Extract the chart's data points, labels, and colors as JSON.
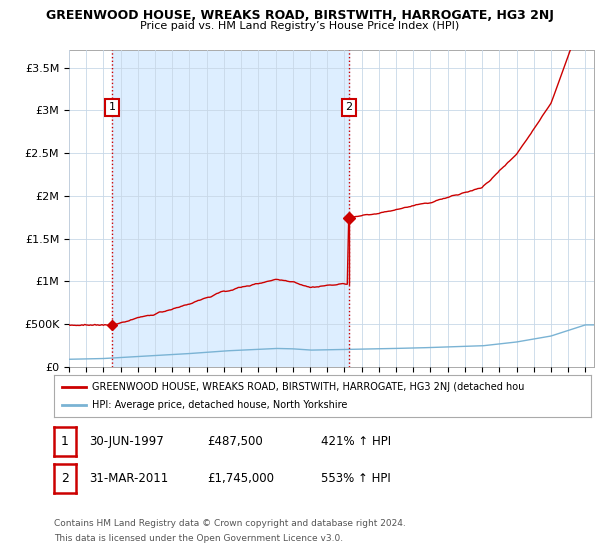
{
  "title": "GREENWOOD HOUSE, WREAKS ROAD, BIRSTWITH, HARROGATE, HG3 2NJ",
  "subtitle": "Price paid vs. HM Land Registry’s House Price Index (HPI)",
  "title_fontsize": 9,
  "subtitle_fontsize": 8,
  "xlim_left": 1995.0,
  "xlim_right": 2025.5,
  "ylim_bottom": 0,
  "ylim_top": 3700000,
  "yticks": [
    0,
    500000,
    1000000,
    1500000,
    2000000,
    2500000,
    3000000,
    3500000
  ],
  "ytick_labels": [
    "£0",
    "£500K",
    "£1M",
    "£1.5M",
    "£2M",
    "£2.5M",
    "£3M",
    "£3.5M"
  ],
  "xticks": [
    1995,
    1996,
    1997,
    1998,
    1999,
    2000,
    2001,
    2002,
    2003,
    2004,
    2005,
    2006,
    2007,
    2008,
    2009,
    2010,
    2011,
    2012,
    2013,
    2014,
    2015,
    2016,
    2017,
    2018,
    2019,
    2020,
    2021,
    2022,
    2023,
    2024,
    2025
  ],
  "point1_x": 1997.496,
  "point1_y": 487500,
  "point2_x": 2011.247,
  "point2_y": 1745000,
  "red_color": "#cc0000",
  "blue_color": "#7ab3d4",
  "shade_color": "#ddeeff",
  "bg_color": "#ffffff",
  "grid_color": "#c8d8e8",
  "legend_line1": "GREENWOOD HOUSE, WREAKS ROAD, BIRSTWITH, HARROGATE, HG3 2NJ (detached hou",
  "legend_line2": "HPI: Average price, detached house, North Yorkshire",
  "footer1": "Contains HM Land Registry data © Crown copyright and database right 2024.",
  "footer2": "This data is licensed under the Open Government Licence v3.0.",
  "table_row1_num": "1",
  "table_row1_date": "30-JUN-1997",
  "table_row1_price": "£487,500",
  "table_row1_hpi": "421% ↑ HPI",
  "table_row2_num": "2",
  "table_row2_date": "31-MAR-2011",
  "table_row2_price": "£1,745,000",
  "table_row2_hpi": "553% ↑ HPI"
}
